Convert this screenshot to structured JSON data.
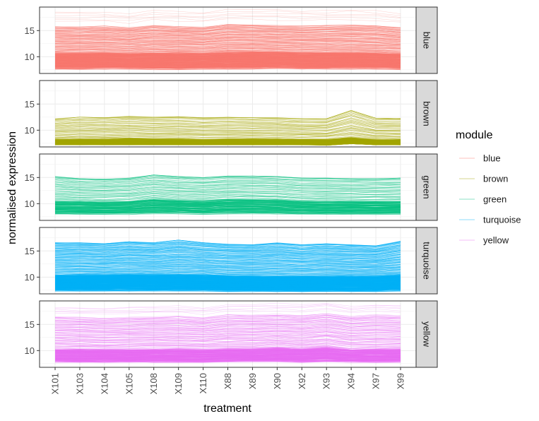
{
  "chart_data": {
    "type": "line",
    "facet_by": "module",
    "xlabel": "treatment",
    "ylabel": "normalised expression",
    "categories": [
      "X101",
      "X103",
      "X104",
      "X105",
      "X108",
      "X109",
      "X110",
      "X88",
      "X89",
      "X90",
      "X92",
      "X93",
      "X94",
      "X97",
      "X99"
    ],
    "ylim": [
      6.8,
      19.5
    ],
    "yticks": [
      10,
      15
    ],
    "grid": true,
    "legend": {
      "title": "module",
      "placement": "right",
      "entries": [
        "blue",
        "brown",
        "green",
        "turquoise",
        "yellow"
      ]
    },
    "series": [
      {
        "name": "blue",
        "color": "#F8766D",
        "trace_count": 260,
        "mean": [
          10.7,
          10.8,
          10.8,
          10.7,
          10.9,
          10.8,
          10.7,
          11.0,
          11.0,
          11.0,
          10.9,
          10.9,
          10.9,
          10.8,
          10.6
        ],
        "min": [
          7.6,
          7.5,
          7.6,
          7.6,
          7.5,
          7.5,
          7.6,
          7.6,
          7.6,
          7.7,
          7.6,
          7.6,
          7.6,
          7.6,
          7.5
        ],
        "max": [
          15.8,
          15.7,
          15.9,
          15.6,
          16.0,
          15.8,
          15.7,
          16.2,
          16.1,
          16.0,
          15.9,
          16.0,
          16.1,
          16.0,
          15.6
        ],
        "outlier_max": [
          18.6,
          18.5,
          18.6,
          18.2,
          18.9,
          18.7,
          18.5,
          19.1,
          19.0,
          19.1,
          18.8,
          18.9,
          19.0,
          18.9,
          18.2
        ]
      },
      {
        "name": "brown",
        "color": "#A3A500",
        "trace_count": 180,
        "mean": [
          8.2,
          8.3,
          8.3,
          8.4,
          8.3,
          8.3,
          8.2,
          8.3,
          8.3,
          8.3,
          8.2,
          8.2,
          8.6,
          8.2,
          8.2
        ],
        "min": [
          7.2,
          7.2,
          7.2,
          7.2,
          7.2,
          7.2,
          7.2,
          7.2,
          7.2,
          7.2,
          7.2,
          7.1,
          7.4,
          7.2,
          7.2
        ],
        "max": [
          12.2,
          12.5,
          12.4,
          12.7,
          12.5,
          12.6,
          12.4,
          12.5,
          12.4,
          12.4,
          12.2,
          12.2,
          13.8,
          12.3,
          12.3
        ],
        "outlier_max": [
          12.2,
          12.5,
          12.4,
          12.7,
          12.5,
          12.6,
          12.4,
          12.5,
          12.4,
          12.4,
          12.2,
          12.2,
          13.8,
          12.3,
          12.3
        ]
      },
      {
        "name": "green",
        "color": "#00BF7D",
        "trace_count": 110,
        "mean": [
          10.6,
          10.5,
          10.4,
          10.5,
          11.0,
          10.7,
          10.6,
          10.9,
          10.9,
          10.8,
          10.5,
          10.5,
          10.5,
          10.5,
          10.5
        ],
        "min": [
          7.9,
          7.9,
          7.9,
          7.9,
          8.0,
          8.0,
          7.9,
          8.0,
          8.0,
          8.0,
          7.9,
          7.9,
          7.9,
          7.9,
          7.9
        ],
        "max": [
          15.2,
          14.8,
          14.7,
          14.9,
          15.5,
          15.2,
          15.0,
          15.3,
          15.3,
          15.2,
          14.9,
          14.9,
          14.8,
          14.8,
          14.9
        ],
        "outlier_max": [
          15.2,
          14.8,
          14.7,
          14.9,
          15.5,
          15.2,
          15.0,
          15.3,
          15.3,
          15.2,
          14.9,
          14.9,
          14.8,
          14.8,
          14.9
        ]
      },
      {
        "name": "turquoise",
        "color": "#00B0F6",
        "trace_count": 330,
        "mean": [
          10.4,
          10.5,
          10.5,
          10.6,
          10.5,
          10.6,
          10.5,
          10.3,
          10.3,
          10.3,
          10.2,
          10.3,
          10.3,
          10.3,
          10.5
        ],
        "min": [
          7.3,
          7.3,
          7.3,
          7.3,
          7.3,
          7.3,
          7.3,
          7.2,
          7.2,
          7.2,
          7.2,
          7.2,
          7.2,
          7.2,
          7.3
        ],
        "max": [
          16.6,
          16.6,
          16.4,
          16.8,
          16.6,
          17.1,
          16.6,
          16.3,
          16.2,
          16.6,
          16.2,
          16.4,
          16.2,
          16.0,
          16.9
        ],
        "outlier_max": [
          16.6,
          16.6,
          16.4,
          16.8,
          16.6,
          17.1,
          16.6,
          16.3,
          16.2,
          16.6,
          16.2,
          16.4,
          16.2,
          16.0,
          16.9
        ]
      },
      {
        "name": "yellow",
        "color": "#E76BF3",
        "trace_count": 170,
        "mean": [
          10.3,
          10.3,
          10.2,
          10.2,
          10.3,
          10.3,
          10.2,
          10.4,
          10.4,
          10.6,
          10.4,
          10.7,
          10.2,
          10.3,
          10.4
        ],
        "min": [
          7.7,
          7.7,
          7.7,
          7.7,
          7.7,
          7.7,
          7.7,
          7.8,
          7.8,
          7.8,
          7.7,
          7.8,
          7.7,
          7.7,
          7.7
        ],
        "max": [
          16.5,
          16.4,
          16.2,
          16.4,
          16.5,
          16.6,
          16.3,
          16.9,
          16.8,
          17.0,
          16.8,
          17.2,
          16.6,
          16.9,
          16.7
        ],
        "outlier_max": [
          18.3,
          18.2,
          18.1,
          18.3,
          18.4,
          18.6,
          18.2,
          18.8,
          18.9,
          19.1,
          18.8,
          19.2,
          18.5,
          18.8,
          18.7
        ]
      }
    ]
  }
}
